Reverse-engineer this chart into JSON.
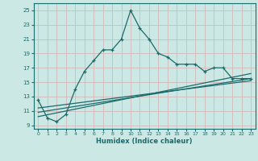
{
  "xlabel": "Humidex (Indice chaleur)",
  "bg_color": "#cce8e4",
  "grid_color": "#b0d8d4",
  "line_color": "#1a6b6b",
  "xlim": [
    -0.5,
    23.5
  ],
  "ylim": [
    8.5,
    26.0
  ],
  "xticks": [
    0,
    1,
    2,
    3,
    4,
    5,
    6,
    7,
    8,
    9,
    10,
    11,
    12,
    13,
    14,
    15,
    16,
    17,
    18,
    19,
    20,
    21,
    22,
    23
  ],
  "yticks": [
    9,
    11,
    13,
    15,
    17,
    19,
    21,
    23,
    25
  ],
  "curve1_x": [
    0,
    1,
    2,
    3,
    4,
    5,
    6,
    7,
    8,
    9,
    10,
    11,
    12,
    13,
    14,
    15,
    16,
    17,
    18,
    19,
    20,
    21,
    22,
    23
  ],
  "curve1_y": [
    12.5,
    10.0,
    9.5,
    10.5,
    14.0,
    16.5,
    18.0,
    19.5,
    19.5,
    21.0,
    25.0,
    22.5,
    21.0,
    19.0,
    18.5,
    17.5,
    17.5,
    17.5,
    16.5,
    17.0,
    17.0,
    15.5,
    15.5,
    15.5
  ],
  "line1_x": [
    0,
    23
  ],
  "line1_y": [
    10.2,
    16.2
  ],
  "line2_x": [
    0,
    23
  ],
  "line2_y": [
    10.8,
    15.5
  ],
  "line3_x": [
    0,
    23
  ],
  "line3_y": [
    11.4,
    15.2
  ]
}
